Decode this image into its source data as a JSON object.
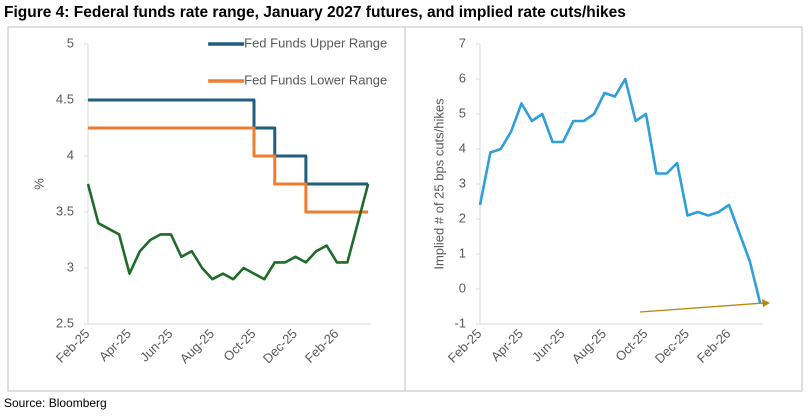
{
  "title": "Figure 4: Federal funds rate range, January 2027 futures, and implied rate cuts/hikes",
  "source": "Source: Bloomberg",
  "chart_data": [
    {
      "type": "line",
      "ylabel": "%",
      "categories": [
        "Feb-25",
        null,
        null,
        null,
        "Apr-25",
        null,
        null,
        null,
        "Jun-25",
        null,
        null,
        null,
        "Aug-25",
        null,
        null,
        null,
        "Oct-25",
        null,
        null,
        null,
        "Dec-25",
        null,
        null,
        null,
        "Feb-26",
        null,
        null,
        null
      ],
      "series": [
        {
          "name": "Fed Funds Upper Range",
          "color": "#1f5f7d",
          "drawstyle": "steps-post",
          "values": [
            4.5,
            4.5,
            4.5,
            4.5,
            4.5,
            4.5,
            4.5,
            4.5,
            4.5,
            4.5,
            4.5,
            4.5,
            4.5,
            4.5,
            4.5,
            4.5,
            4.25,
            4.25,
            4.0,
            4.0,
            4.0,
            3.75,
            3.75,
            3.75,
            3.75,
            3.75,
            3.75,
            3.75
          ]
        },
        {
          "name": "Fed Funds Lower Range",
          "color": "#ed7d31",
          "drawstyle": "steps-post",
          "values": [
            4.25,
            4.25,
            4.25,
            4.25,
            4.25,
            4.25,
            4.25,
            4.25,
            4.25,
            4.25,
            4.25,
            4.25,
            4.25,
            4.25,
            4.25,
            4.25,
            4.0,
            4.0,
            3.75,
            3.75,
            3.75,
            3.5,
            3.5,
            3.5,
            3.5,
            3.5,
            3.5,
            3.5
          ]
        },
        {
          "color": "#1e6b2a",
          "values": [
            3.75,
            3.4,
            3.35,
            3.3,
            2.95,
            3.15,
            3.25,
            3.3,
            3.3,
            3.1,
            3.15,
            3.0,
            2.9,
            2.95,
            2.9,
            3.0,
            2.95,
            2.9,
            3.05,
            3.05,
            3.1,
            3.05,
            3.15,
            3.2,
            3.05,
            3.05,
            3.4,
            3.75
          ]
        }
      ],
      "ylim": [
        2.5,
        5
      ],
      "yticks": [
        2.5,
        3,
        3.5,
        4,
        4.5,
        5
      ],
      "legend": "upper right"
    },
    {
      "type": "line",
      "ylabel": "Implied # of 25 bps cuts/hikes",
      "categories": [
        "Feb-25",
        null,
        null,
        null,
        "Apr-25",
        null,
        null,
        null,
        "Jun-25",
        null,
        null,
        null,
        "Aug-25",
        null,
        null,
        null,
        "Oct-25",
        null,
        null,
        null,
        "Dec-25",
        null,
        null,
        null,
        "Feb-26",
        null,
        null,
        null
      ],
      "series": [
        {
          "color": "#2e9fd9",
          "values": [
            2.4,
            3.9,
            4.0,
            4.5,
            5.3,
            4.8,
            5.0,
            4.2,
            4.2,
            4.8,
            4.8,
            5.0,
            5.6,
            5.5,
            6.0,
            4.8,
            5.0,
            3.3,
            3.3,
            3.6,
            2.1,
            2.2,
            2.1,
            2.2,
            2.4,
            1.6,
            0.8,
            -0.4
          ]
        }
      ],
      "ylim": [
        -1,
        7
      ],
      "yticks": [
        -1,
        0,
        1,
        2,
        3,
        4,
        5,
        6,
        7
      ]
    }
  ]
}
